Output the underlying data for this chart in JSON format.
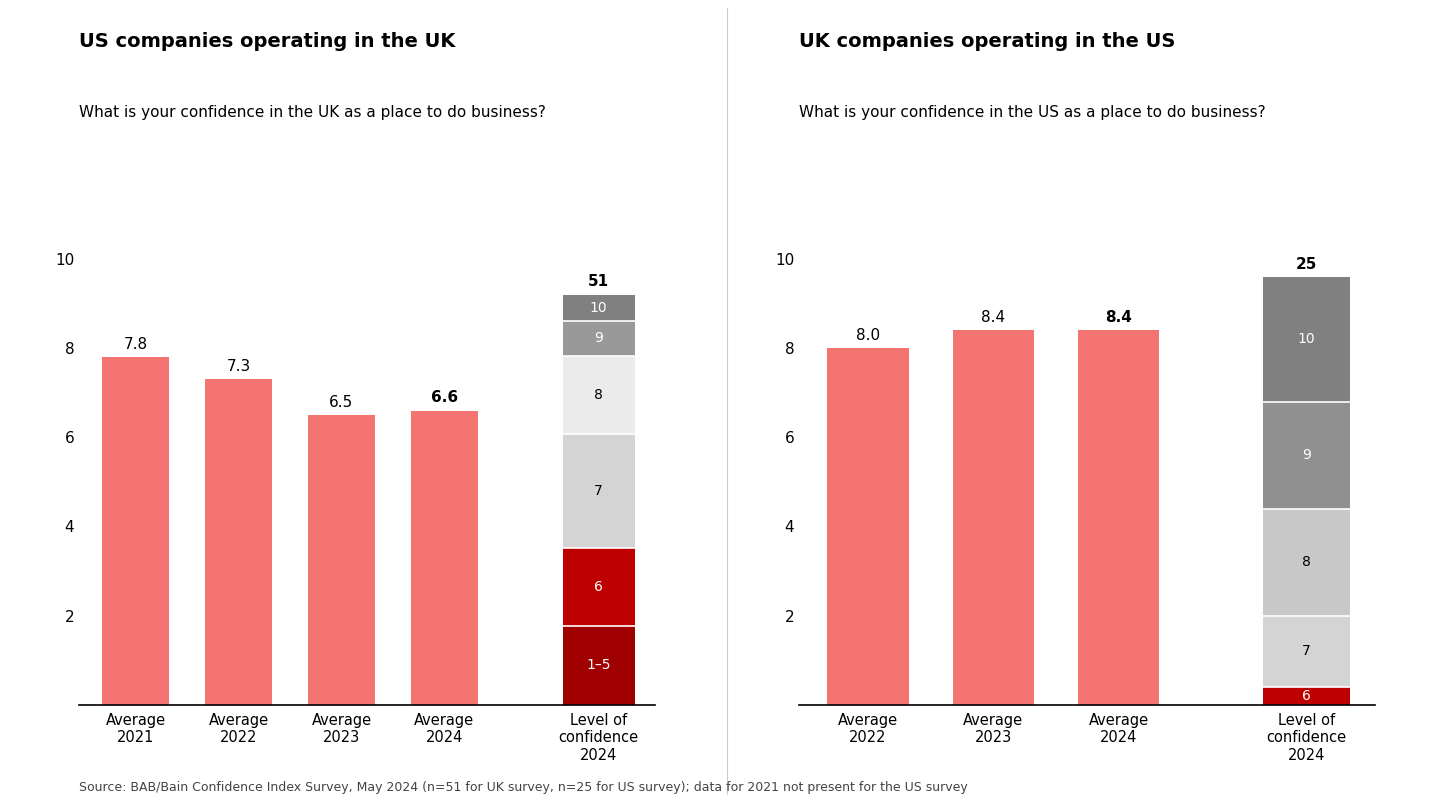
{
  "left_title": "US companies operating in the UK",
  "right_title": "UK companies operating in the US",
  "left_subtitle": "What is your confidence in the UK as a place to do business?",
  "right_subtitle": "What is your confidence in the US as a place to do business?",
  "source": "Source: BAB/Bain Confidence Index Survey, May 2024 (n=51 for UK survey, n=25 for US survey); data for 2021 not present for the US survey",
  "left_bars": {
    "categories": [
      "Average\n2021",
      "Average\n2022",
      "Average\n2023",
      "Average\n2024"
    ],
    "values": [
      7.8,
      7.3,
      6.5,
      6.6
    ],
    "bold_last": true
  },
  "right_bars": {
    "categories": [
      "Average\n2022",
      "Average\n2023",
      "Average\n2024"
    ],
    "values": [
      8.0,
      8.4,
      8.4
    ],
    "bold_last": true
  },
  "left_stacked": {
    "label": "Level of\nconfidence\n2024",
    "n_label": "51",
    "segments": [
      {
        "name": "1–5",
        "value": 1.76,
        "color": "#a00000",
        "text_color": "white"
      },
      {
        "name": "6",
        "value": 1.76,
        "color": "#bf0000",
        "text_color": "white"
      },
      {
        "name": "7",
        "value": 2.55,
        "color": "#d4d4d4",
        "text_color": "black"
      },
      {
        "name": "8",
        "value": 1.76,
        "color": "#ebebeb",
        "text_color": "black"
      },
      {
        "name": "9",
        "value": 0.78,
        "color": "#999999",
        "text_color": "white"
      },
      {
        "name": "10",
        "value": 0.59,
        "color": "#808080",
        "text_color": "white"
      }
    ]
  },
  "right_stacked": {
    "label": "Level of\nconfidence\n2024",
    "n_label": "25",
    "segments": [
      {
        "name": "6",
        "value": 0.4,
        "color": "#bf0000",
        "text_color": "white"
      },
      {
        "name": "7",
        "value": 1.6,
        "color": "#d4d4d4",
        "text_color": "black"
      },
      {
        "name": "8",
        "value": 2.4,
        "color": "#c8c8c8",
        "text_color": "black"
      },
      {
        "name": "9",
        "value": 2.4,
        "color": "#909090",
        "text_color": "white"
      },
      {
        "name": "10",
        "value": 2.8,
        "color": "#808080",
        "text_color": "white"
      }
    ]
  },
  "bar_color": "#f47472",
  "ylim": [
    0,
    10
  ],
  "yticks": [
    0,
    2,
    4,
    6,
    8,
    10
  ],
  "background_color": "#ffffff"
}
